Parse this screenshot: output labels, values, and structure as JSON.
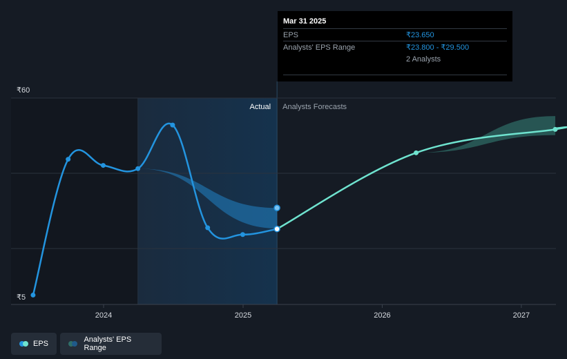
{
  "chart_data": {
    "type": "line",
    "y_tick_labels": [
      "₹60",
      "₹5"
    ],
    "ylim": [
      5,
      60
    ],
    "x_tick_labels": [
      "2024",
      "2025",
      "2026",
      "2027"
    ],
    "section_labels": {
      "actual": "Actual",
      "forecast": "Analysts Forecasts"
    },
    "series": [
      {
        "name": "EPS",
        "color": "#2394df",
        "points": [
          {
            "x": "2023-06-30",
            "y": 5.3
          },
          {
            "x": "2023-09-30",
            "y": 43.0
          },
          {
            "x": "2023-12-31",
            "y": 41.3
          },
          {
            "x": "2024-03-31",
            "y": 40.4
          },
          {
            "x": "2024-06-30",
            "y": 52.5
          },
          {
            "x": "2024-09-30",
            "y": 24.0
          },
          {
            "x": "2024-12-31",
            "y": 22.1
          },
          {
            "x": "2025-03-31",
            "y": 23.65
          }
        ]
      },
      {
        "name": "EPS Forecast",
        "color": "#6fe3cf",
        "points": [
          {
            "x": "2025-03-31",
            "y": 23.65
          },
          {
            "x": "2026-03-31",
            "y": 44.8
          },
          {
            "x": "2027-03-31",
            "y": 51.3
          }
        ]
      }
    ],
    "ranges": [
      {
        "name": "Analysts' EPS Range (past)",
        "color": "#2394df",
        "points": [
          {
            "x": "2024-03-31",
            "low": 40.4,
            "high": 40.4
          },
          {
            "x": "2025-03-31",
            "low": 23.8,
            "high": 29.5
          }
        ]
      },
      {
        "name": "Analysts' EPS Range",
        "color": "#2f6e68",
        "points": [
          {
            "x": "2025-03-31",
            "low": 23.65,
            "high": 23.65
          },
          {
            "x": "2026-03-31",
            "low": 44.8,
            "high": 44.8
          },
          {
            "x": "2027-03-31",
            "low": 49.7,
            "high": 55.0
          }
        ]
      }
    ]
  },
  "tooltip": {
    "date": "Mar 31 2025",
    "eps_label": "EPS",
    "eps_value": "₹23.650",
    "range_label": "Analysts' EPS Range",
    "range_value": "₹23.800 - ₹29.500",
    "analysts": "2 Analysts"
  },
  "legend": {
    "eps_label": "EPS",
    "range_label": "Analysts' EPS Range",
    "eps_colors": [
      "#2394df",
      "#6fe3cf"
    ],
    "range_colors": [
      "#2f6e68",
      "#1f5a8a"
    ]
  }
}
